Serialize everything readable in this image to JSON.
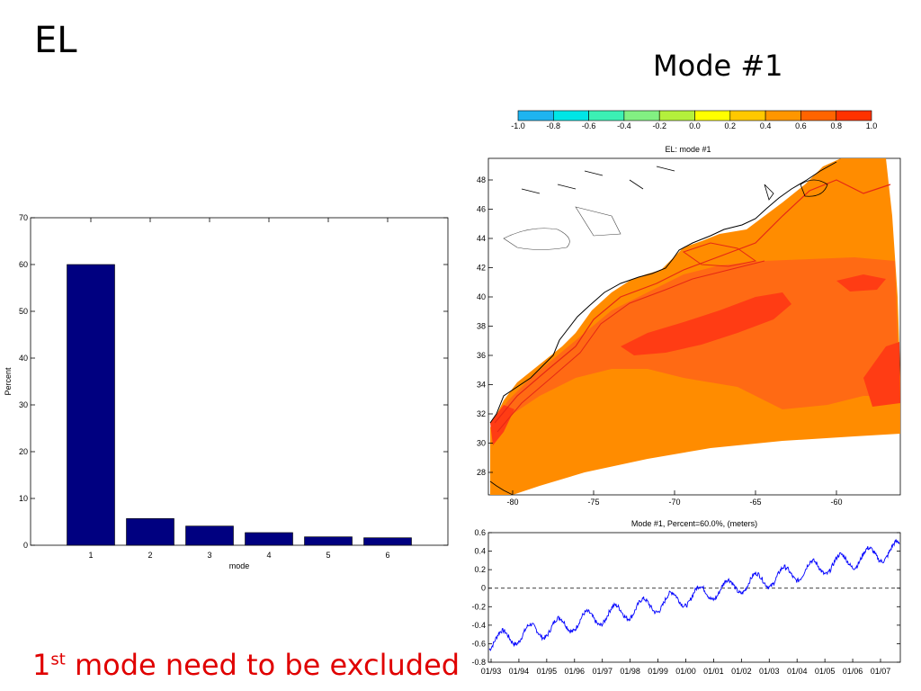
{
  "slide": {
    "title": "EL",
    "mode_title": "Mode #1",
    "note_num": "1",
    "note_sup": "st",
    "note_rest": " mode need to be excluded"
  },
  "chart_data": [
    {
      "type": "bar",
      "categories": [
        "1",
        "2",
        "3",
        "4",
        "5",
        "6"
      ],
      "values": [
        60,
        5.7,
        4.1,
        2.7,
        1.8,
        1.6
      ],
      "xlabel": "mode",
      "ylabel": "Percent",
      "ylim": [
        0,
        70
      ],
      "yticks": [
        0,
        10,
        20,
        30,
        40,
        50,
        60,
        70
      ],
      "color": "#000080"
    },
    {
      "type": "heatmap",
      "title": "EL: mode #1",
      "colorbar_ticks": [
        "-1.0",
        "-0.8",
        "-0.6",
        "-0.4",
        "-0.2",
        "0.0",
        "0.2",
        "0.4",
        "0.6",
        "0.8",
        "1.0"
      ],
      "colorbar_colors": [
        "#1eb4f0",
        "#00e6e6",
        "#3cf0b4",
        "#82f082",
        "#b4f03c",
        "#ffff00",
        "#ffc800",
        "#ff9600",
        "#ff6400",
        "#ff3200"
      ],
      "xticks": [
        "-80",
        "-75",
        "-70",
        "-65",
        "-60"
      ],
      "yticks": [
        "28",
        "30",
        "32",
        "34",
        "36",
        "38",
        "40",
        "42",
        "44",
        "46",
        "48"
      ],
      "colors": {
        "base": "#ff8c00",
        "mid": "#ff6a14",
        "high": "#ff3c14"
      }
    },
    {
      "type": "line",
      "title": "Mode #1, Percent=60.0%, (meters)",
      "xticks": [
        "01/93",
        "01/94",
        "01/95",
        "01/96",
        "01/97",
        "01/98",
        "01/99",
        "01/00",
        "01/01",
        "01/02",
        "01/03",
        "01/04",
        "01/05",
        "01/06",
        "01/07"
      ],
      "yticks": [
        "-0.8",
        "-0.6",
        "-0.4",
        "-0.2",
        "0",
        "0.2",
        "0.4",
        "0.6"
      ],
      "ylim": [
        -0.8,
        0.6
      ],
      "trend_start": -0.58,
      "trend_end": 0.42,
      "seasonal_amplitude": 0.09,
      "color": "#0000ff"
    }
  ]
}
